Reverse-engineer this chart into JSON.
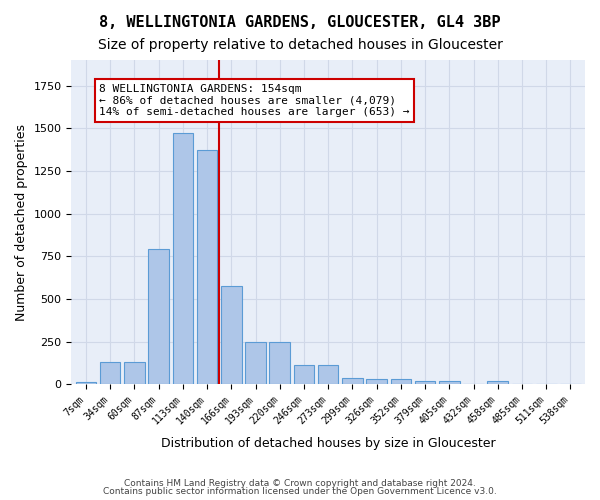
{
  "title1": "8, WELLINGTONIA GARDENS, GLOUCESTER, GL4 3BP",
  "title2": "Size of property relative to detached houses in Gloucester",
  "xlabel": "Distribution of detached houses by size in Gloucester",
  "ylabel": "Number of detached properties",
  "footnote1": "Contains HM Land Registry data © Crown copyright and database right 2024.",
  "footnote2": "Contains public sector information licensed under the Open Government Licence v3.0.",
  "bar_labels": [
    "7sqm",
    "34sqm",
    "60sqm",
    "87sqm",
    "113sqm",
    "140sqm",
    "166sqm",
    "193sqm",
    "220sqm",
    "246sqm",
    "273sqm",
    "299sqm",
    "326sqm",
    "352sqm",
    "379sqm",
    "405sqm",
    "432sqm",
    "458sqm",
    "485sqm",
    "511sqm",
    "538sqm"
  ],
  "bar_values": [
    10,
    130,
    130,
    795,
    1470,
    1370,
    575,
    250,
    250,
    110,
    110,
    35,
    30,
    30,
    20,
    20,
    0,
    20,
    0,
    0,
    0
  ],
  "bar_color": "#aec6e8",
  "bar_edge_color": "#5b9bd5",
  "annotation_text": "8 WELLINGTONIA GARDENS: 154sqm\n← 86% of detached houses are smaller (4,079)\n14% of semi-detached houses are larger (653) →",
  "vline_color": "#cc0000",
  "annotation_box_color": "#cc0000",
  "vline_x": 5.5,
  "ylim": [
    0,
    1900
  ],
  "grid_color": "#d0d8e8",
  "background_color": "#e8eef8",
  "title1_fontsize": 11,
  "title2_fontsize": 10,
  "xlabel_fontsize": 9,
  "ylabel_fontsize": 9,
  "tick_fontsize": 7,
  "annotation_fontsize": 8
}
